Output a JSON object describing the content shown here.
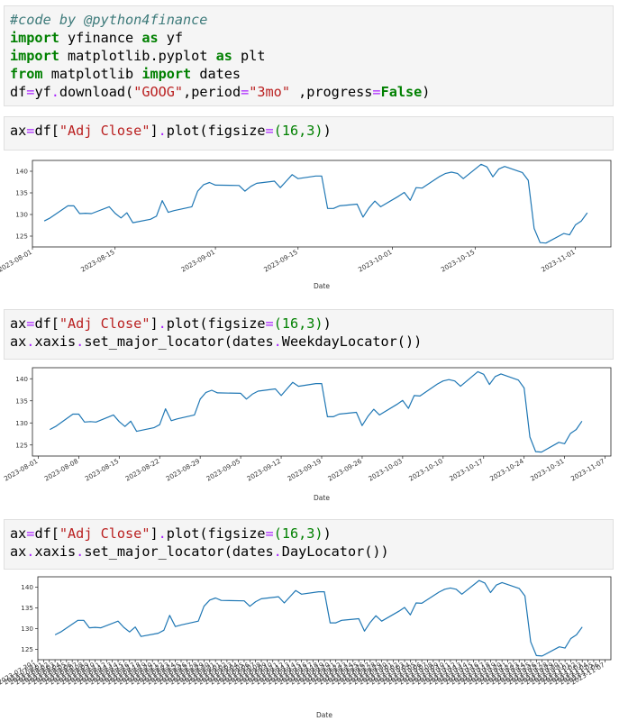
{
  "cells": [
    {
      "lines": [
        [
          {
            "t": "#code by @python4finance",
            "c": "cm"
          }
        ],
        [
          {
            "t": "import",
            "c": "kw"
          },
          {
            "t": " yfinance "
          },
          {
            "t": "as",
            "c": "kw"
          },
          {
            "t": " yf"
          }
        ],
        [
          {
            "t": "import",
            "c": "kw"
          },
          {
            "t": " matplotlib.pyplot "
          },
          {
            "t": "as",
            "c": "kw"
          },
          {
            "t": " plt"
          }
        ],
        [
          {
            "t": "from",
            "c": "kw"
          },
          {
            "t": " matplotlib "
          },
          {
            "t": "import",
            "c": "kw"
          },
          {
            "t": " dates"
          }
        ],
        [
          {
            "t": "df"
          },
          {
            "t": "=",
            "c": "op"
          },
          {
            "t": "yf"
          },
          {
            "t": ".",
            "c": "op"
          },
          {
            "t": "download("
          },
          {
            "t": "\"GOOG\"",
            "c": "st"
          },
          {
            "t": ",period"
          },
          {
            "t": "=",
            "c": "op"
          },
          {
            "t": "\"3mo\"",
            "c": "st"
          },
          {
            "t": " ,progress"
          },
          {
            "t": "=",
            "c": "op"
          },
          {
            "t": "False",
            "c": "kw"
          },
          {
            "t": ")"
          }
        ]
      ]
    },
    {
      "lines": [
        [
          {
            "t": "ax"
          },
          {
            "t": "=",
            "c": "op"
          },
          {
            "t": "df["
          },
          {
            "t": "\"Adj Close\"",
            "c": "st"
          },
          {
            "t": "]"
          },
          {
            "t": ".",
            "c": "op"
          },
          {
            "t": "plot(figsize"
          },
          {
            "t": "=",
            "c": "op"
          },
          {
            "t": "(16,3)",
            "c": "nm"
          },
          {
            "t": ")"
          }
        ]
      ]
    },
    {
      "lines": [
        [
          {
            "t": "ax"
          },
          {
            "t": "=",
            "c": "op"
          },
          {
            "t": "df["
          },
          {
            "t": "\"Adj Close\"",
            "c": "st"
          },
          {
            "t": "]"
          },
          {
            "t": ".",
            "c": "op"
          },
          {
            "t": "plot(figsize"
          },
          {
            "t": "=",
            "c": "op"
          },
          {
            "t": "(16,3)",
            "c": "nm"
          },
          {
            "t": ")"
          }
        ],
        [
          {
            "t": "ax"
          },
          {
            "t": ".",
            "c": "op"
          },
          {
            "t": "xaxis"
          },
          {
            "t": ".",
            "c": "op"
          },
          {
            "t": "set_major_locator(dates"
          },
          {
            "t": ".",
            "c": "op"
          },
          {
            "t": "WeekdayLocator())"
          }
        ]
      ]
    },
    {
      "lines": [
        [
          {
            "t": "ax"
          },
          {
            "t": "=",
            "c": "op"
          },
          {
            "t": "df["
          },
          {
            "t": "\"Adj Close\"",
            "c": "st"
          },
          {
            "t": "]"
          },
          {
            "t": ".",
            "c": "op"
          },
          {
            "t": "plot(figsize"
          },
          {
            "t": "=",
            "c": "op"
          },
          {
            "t": "(16,3)",
            "c": "nm"
          },
          {
            "t": ")"
          }
        ],
        [
          {
            "t": "ax"
          },
          {
            "t": ".",
            "c": "op"
          },
          {
            "t": "xaxis"
          },
          {
            "t": ".",
            "c": "op"
          },
          {
            "t": "set_major_locator(dates"
          },
          {
            "t": ".",
            "c": "op"
          },
          {
            "t": "DayLocator())"
          }
        ]
      ]
    }
  ],
  "line_color": "#1f77b4",
  "chart_data": [
    {
      "type": "line",
      "xlabel": "Date",
      "ylabel": "",
      "yticks": [
        125,
        130,
        135,
        140
      ],
      "ylim": [
        122.5,
        142.5
      ],
      "xlim": [
        "2023-08-01",
        "2023-11-07"
      ],
      "xticks": [
        "2023-08-01",
        "2023-08-15",
        "2023-09-01",
        "2023-09-15",
        "2023-10-01",
        "2023-10-15",
        "2023-11-01"
      ],
      "x": [
        "2023-08-03",
        "2023-08-04",
        "2023-08-07",
        "2023-08-08",
        "2023-08-09",
        "2023-08-10",
        "2023-08-11",
        "2023-08-14",
        "2023-08-15",
        "2023-08-16",
        "2023-08-17",
        "2023-08-18",
        "2023-08-21",
        "2023-08-22",
        "2023-08-23",
        "2023-08-24",
        "2023-08-25",
        "2023-08-28",
        "2023-08-29",
        "2023-08-30",
        "2023-08-31",
        "2023-09-01",
        "2023-09-05",
        "2023-09-06",
        "2023-09-07",
        "2023-09-08",
        "2023-09-11",
        "2023-09-12",
        "2023-09-13",
        "2023-09-14",
        "2023-09-15",
        "2023-09-18",
        "2023-09-19",
        "2023-09-20",
        "2023-09-21",
        "2023-09-22",
        "2023-09-25",
        "2023-09-26",
        "2023-09-27",
        "2023-09-28",
        "2023-09-29",
        "2023-10-02",
        "2023-10-03",
        "2023-10-04",
        "2023-10-05",
        "2023-10-06",
        "2023-10-09",
        "2023-10-10",
        "2023-10-11",
        "2023-10-12",
        "2023-10-13",
        "2023-10-16",
        "2023-10-17",
        "2023-10-18",
        "2023-10-19",
        "2023-10-20",
        "2023-10-23",
        "2023-10-24",
        "2023-10-25",
        "2023-10-26",
        "2023-10-27",
        "2023-10-30",
        "2023-10-31",
        "2023-11-01",
        "2023-11-02",
        "2023-11-03"
      ],
      "y": [
        128.5,
        129.2,
        132.0,
        132.0,
        130.2,
        130.3,
        130.2,
        131.8,
        130.3,
        129.2,
        130.4,
        128.1,
        128.9,
        129.6,
        133.2,
        130.5,
        130.9,
        131.8,
        135.4,
        136.9,
        137.4,
        136.8,
        136.7,
        135.4,
        136.5,
        137.2,
        137.7,
        136.2,
        137.7,
        139.2,
        138.3,
        138.9,
        138.9,
        131.4,
        131.4,
        132.0,
        132.4,
        129.4,
        131.5,
        133.1,
        131.8,
        134.2,
        135.1,
        133.3,
        136.2,
        136.1,
        138.8,
        139.5,
        139.8,
        139.5,
        138.3,
        141.6,
        141.0,
        138.7,
        140.5,
        141.1,
        139.7,
        137.9,
        126.8,
        123.5,
        123.4,
        125.6,
        125.3,
        127.6,
        128.5,
        130.4
      ]
    },
    {
      "type": "line",
      "xlabel": "Date",
      "ylabel": "",
      "yticks": [
        125,
        130,
        135,
        140
      ],
      "ylim": [
        122.5,
        142.5
      ],
      "xlim": [
        "2023-07-31",
        "2023-11-08"
      ],
      "xticks": [
        "2023-08-01",
        "2023-08-08",
        "2023-08-15",
        "2023-08-22",
        "2023-08-29",
        "2023-09-05",
        "2023-09-12",
        "2023-09-19",
        "2023-09-26",
        "2023-10-03",
        "2023-10-10",
        "2023-10-17",
        "2023-10-24",
        "2023-10-31",
        "2023-11-07"
      ],
      "series_ref": 0
    },
    {
      "type": "line",
      "xlabel": "Date",
      "ylabel": "",
      "yticks": [
        125,
        130,
        135,
        140
      ],
      "ylim": [
        122.5,
        142.5
      ],
      "xlim": [
        "2023-07-31",
        "2023-11-08"
      ],
      "xticks": [
        "2023-07-30",
        "2023-11-07"
      ],
      "daily_ticks": true,
      "series_ref": 0
    }
  ]
}
